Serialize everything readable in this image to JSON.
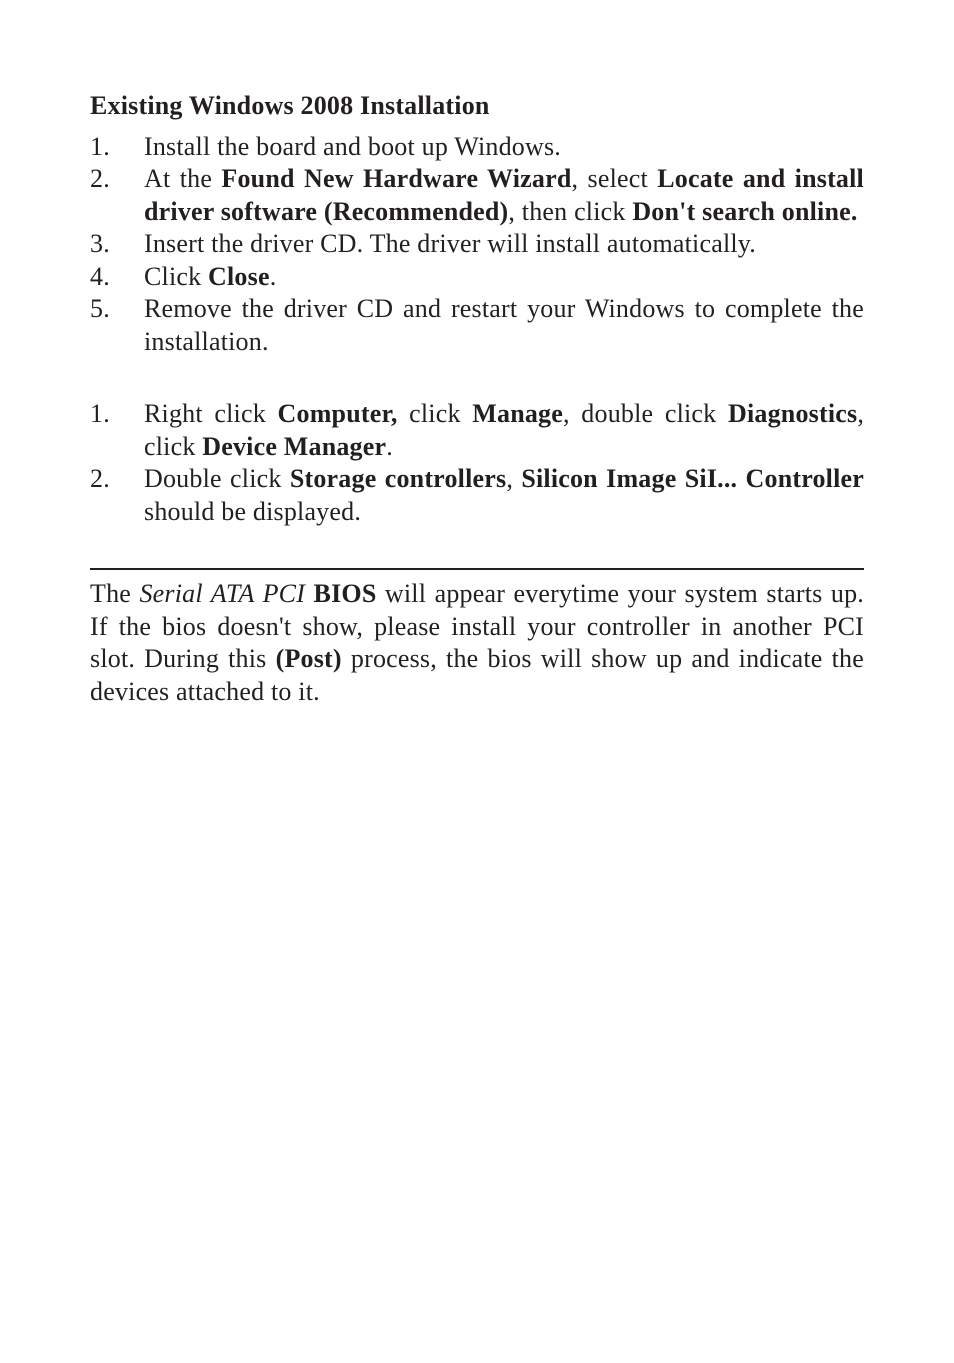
{
  "colors": {
    "text": "#231f20",
    "background": "#ffffff",
    "rule": "#231f20"
  },
  "typography": {
    "font_family": "Palatino Linotype / Book Antiqua / Palatino",
    "body_size_pt": 20,
    "heading_weight": "bold",
    "line_height": 1.25,
    "alignment": "justify"
  },
  "heading": "Existing Windows 2008 Installation",
  "list1": [
    {
      "num": "1.",
      "parts": [
        {
          "t": "Install the board and boot up Windows."
        }
      ]
    },
    {
      "num": "2.",
      "parts": [
        {
          "t": "At the "
        },
        {
          "t": "Found New Hardware Wizard",
          "b": true
        },
        {
          "t": ", select "
        },
        {
          "t": "Locate and install driver software (Recommended)",
          "b": true
        },
        {
          "t": ", then click "
        },
        {
          "t": "Don't search online.",
          "b": true
        }
      ]
    },
    {
      "num": "3.",
      "parts": [
        {
          "t": "Insert the driver CD.  The driver will install automatically."
        }
      ]
    },
    {
      "num": "4.",
      "parts": [
        {
          "t": "Click "
        },
        {
          "t": "Close",
          "b": true
        },
        {
          "t": "."
        }
      ]
    },
    {
      "num": "5.",
      "parts": [
        {
          "t": "Remove the driver CD and restart your Windows to complete the installation."
        }
      ]
    }
  ],
  "list2": [
    {
      "num": "1.",
      "parts": [
        {
          "t": "Right click "
        },
        {
          "t": "Computer,",
          "b": true
        },
        {
          "t": " click "
        },
        {
          "t": "Manage",
          "b": true
        },
        {
          "t": ", double click "
        },
        {
          "t": "Diagnostics",
          "b": true
        },
        {
          "t": ", click "
        },
        {
          "t": "Device Manager",
          "b": true
        },
        {
          "t": "."
        }
      ]
    },
    {
      "num": "2.",
      "parts": [
        {
          "t": "Double click "
        },
        {
          "t": "Storage controllers",
          "b": true
        },
        {
          "t": ", "
        },
        {
          "t": "Silicon Image SiI... Controller",
          "b": true
        },
        {
          "t": " should be displayed."
        }
      ]
    }
  ],
  "paragraph": [
    {
      "t": "The "
    },
    {
      "t": "Serial ATA PCI",
      "i": true
    },
    {
      "t": " "
    },
    {
      "t": "BIOS",
      "b": true
    },
    {
      "t": " will appear everytime your system starts up.  If the bios doesn't show, please install your controller in another PCI slot.  During this "
    },
    {
      "t": "(Post)",
      "b": true
    },
    {
      "t": " process, the bios will show up and indicate the devices attached to it."
    }
  ]
}
